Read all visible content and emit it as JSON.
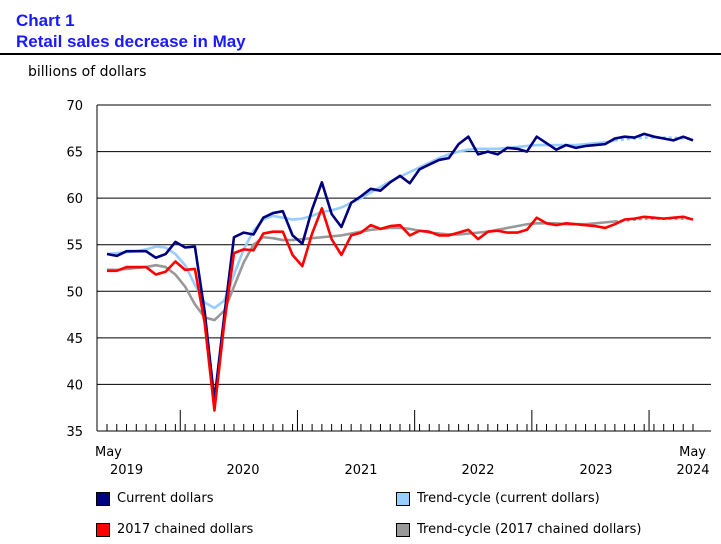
{
  "header": {
    "number": "Chart 1",
    "title": "Retail sales decrease in May"
  },
  "unit_label": "billions of dollars",
  "colors": {
    "current": "#00007f",
    "trend_current": "#99ccff",
    "chained": "#ff0000",
    "trend_chained": "#999999"
  },
  "chart_data": {
    "type": "line",
    "title": "Retail sales decrease in May",
    "ylabel": "billions of dollars",
    "xlabel": "",
    "ylim": [
      35,
      70
    ],
    "yticks": [
      35,
      40,
      45,
      50,
      55,
      60,
      65,
      70
    ],
    "x_start_label": "May",
    "x_end_label": "May",
    "year_labels": [
      "2019",
      "2020",
      "2021",
      "2022",
      "2023",
      "2024"
    ],
    "x_count": 61,
    "series": [
      {
        "name": "Current dollars",
        "color": "#00007f",
        "dashed_from": 60,
        "values": [
          54.0,
          53.8,
          54.3,
          54.3,
          54.3,
          53.6,
          54.0,
          55.3,
          54.7,
          54.8,
          47.8,
          38.3,
          47.3,
          55.8,
          56.3,
          56.1,
          57.9,
          58.4,
          58.6,
          56.0,
          55.1,
          58.8,
          61.7,
          58.3,
          56.9,
          59.5,
          60.2,
          61.0,
          60.8,
          61.7,
          62.4,
          61.6,
          63.1,
          63.6,
          64.1,
          64.3,
          65.8,
          66.6,
          64.7,
          65.0,
          64.7,
          65.4,
          65.3,
          65.0,
          66.6,
          65.9,
          65.2,
          65.7,
          65.4,
          65.6,
          65.7,
          65.8,
          66.4,
          66.6,
          66.5,
          66.9,
          66.6,
          66.4,
          66.2,
          66.6,
          66.2
        ]
      },
      {
        "name": "Trend-cycle (current dollars)",
        "color": "#99ccff",
        "dashed_from": 52,
        "values": [
          54.0,
          54.1,
          54.2,
          54.3,
          54.5,
          54.8,
          54.7,
          54.0,
          52.8,
          50.7,
          48.8,
          48.2,
          49.0,
          51.8,
          54.5,
          56.5,
          57.7,
          58.1,
          57.9,
          57.7,
          57.8,
          58.1,
          58.5,
          58.7,
          59.0,
          59.5,
          60.0,
          60.6,
          61.2,
          61.8,
          62.3,
          62.8,
          63.3,
          63.8,
          64.3,
          64.7,
          65.0,
          65.2,
          65.3,
          65.3,
          65.3,
          65.4,
          65.5,
          65.6,
          65.7,
          65.7,
          65.7,
          65.7,
          65.7,
          65.8,
          65.9,
          66.0,
          66.2,
          66.3,
          66.4,
          66.5,
          66.5,
          66.5,
          66.5,
          66.4,
          66.4
        ]
      },
      {
        "name": "2017 chained dollars",
        "color": "#ff0000",
        "dashed_from": 60,
        "values": [
          52.2,
          52.2,
          52.6,
          52.6,
          52.6,
          51.8,
          52.1,
          53.2,
          52.3,
          52.4,
          46.6,
          37.2,
          46.5,
          54.1,
          54.5,
          54.4,
          56.2,
          56.4,
          56.4,
          53.9,
          52.7,
          56.2,
          58.9,
          55.6,
          53.9,
          56.0,
          56.3,
          57.1,
          56.7,
          57.0,
          57.1,
          56.0,
          56.5,
          56.4,
          56.0,
          56.0,
          56.3,
          56.6,
          55.6,
          56.4,
          56.5,
          56.3,
          56.3,
          56.6,
          57.9,
          57.3,
          57.1,
          57.3,
          57.2,
          57.1,
          57.0,
          56.8,
          57.2,
          57.7,
          57.8,
          58.0,
          57.9,
          57.8,
          57.9,
          58.0,
          57.7
        ]
      },
      {
        "name": "Trend-cycle (2017 chained dollars)",
        "color": "#999999",
        "dashed_from": 52,
        "values": [
          52.3,
          52.3,
          52.4,
          52.5,
          52.6,
          52.8,
          52.6,
          51.8,
          50.5,
          48.6,
          47.2,
          46.9,
          47.9,
          50.5,
          53.1,
          55.0,
          55.8,
          55.7,
          55.5,
          55.5,
          55.6,
          55.7,
          55.8,
          55.9,
          56.0,
          56.2,
          56.4,
          56.6,
          56.7,
          56.8,
          56.8,
          56.7,
          56.5,
          56.3,
          56.2,
          56.1,
          56.1,
          56.2,
          56.3,
          56.4,
          56.6,
          56.8,
          57.0,
          57.2,
          57.3,
          57.3,
          57.3,
          57.2,
          57.2,
          57.2,
          57.3,
          57.4,
          57.5,
          57.6,
          57.7,
          57.8,
          57.8,
          57.8,
          57.8,
          57.8,
          57.8
        ]
      }
    ]
  },
  "legend": [
    {
      "label": "Current dollars",
      "color": "#00007f"
    },
    {
      "label": "Trend-cycle (current dollars)",
      "color": "#99ccff"
    },
    {
      "label": "2017 chained dollars",
      "color": "#ff0000"
    },
    {
      "label": "Trend-cycle (2017 chained dollars)",
      "color": "#999999"
    }
  ]
}
